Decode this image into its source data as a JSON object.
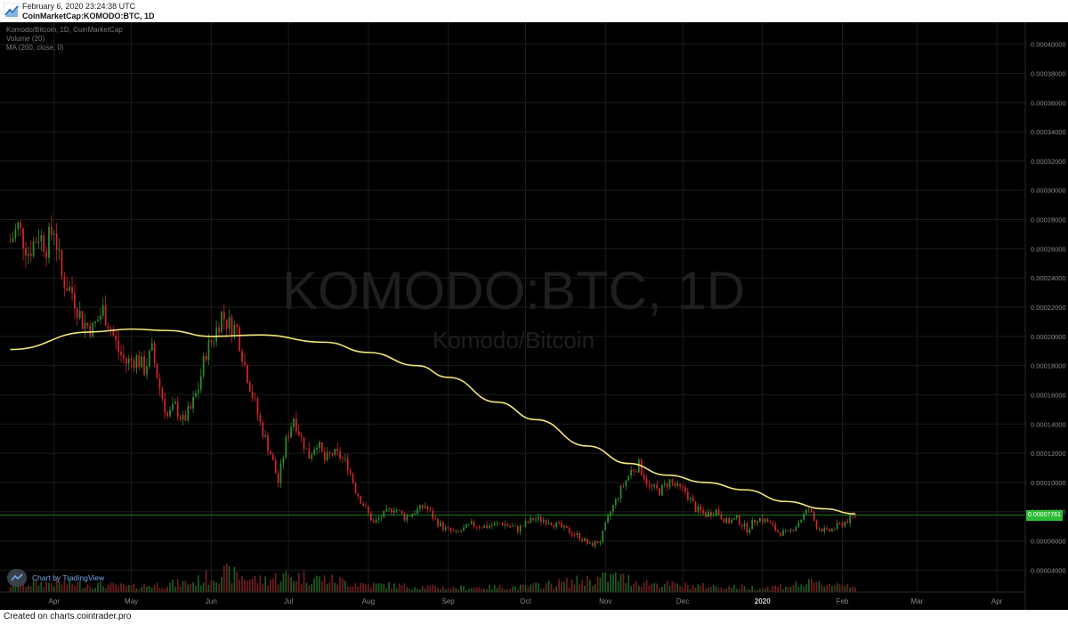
{
  "header": {
    "datetime": "February 6, 2020 23:24:38 UTC",
    "symbol": "CoinMarketCap:KOMODO:BTC, 1D"
  },
  "legend": {
    "series_title": "Komodo/Bitcoin, 1D, CoinMarketCap",
    "volume": "Volume (20)",
    "ma": "MA (200, close, 0)"
  },
  "watermark": {
    "main": "KOMODO:BTC, 1D",
    "sub": "Komodo/Bitcoin"
  },
  "badge": {
    "text": "Chart by TradingView"
  },
  "footer": {
    "text": "Created on charts.cointrader.pro"
  },
  "colors": {
    "background": "#000000",
    "up": "#2e8b2e",
    "down": "#d0262b",
    "ma": "#f1e57a",
    "grid": "#1c1c1c",
    "price_line": "#2dbd35"
  },
  "chart_data": {
    "type": "candlestick",
    "x_labels": [
      "Apr",
      "May",
      "Jun",
      "Jul",
      "Aug",
      "Sep",
      "Oct",
      "Nov",
      "Dec",
      "2020",
      "Feb",
      "Mar",
      "Apr"
    ],
    "y_ticks": [
      4e-05,
      6e-05,
      8e-05,
      0.0001,
      0.00012,
      0.00014,
      0.00016,
      0.00018,
      0.0002,
      0.00022,
      0.00024,
      0.00026,
      0.00028,
      0.0003,
      0.00032,
      0.00034,
      0.00036,
      0.00038,
      0.0004
    ],
    "y_tick_labels": [
      "0.00004000",
      "0.00006000",
      "0.00008000",
      "0.00010000",
      "0.00012000",
      "0.00014000",
      "0.00016000",
      "0.00018000",
      "0.00020000",
      "0.00022000",
      "0.00024000",
      "0.00026000",
      "0.00028000",
      "0.00030000",
      "0.00032000",
      "0.00034000",
      "0.00036000",
      "0.00038000",
      "0.00040000"
    ],
    "ylim": [
      2.5e-05,
      0.000415
    ],
    "last_price": 7.76e-05,
    "last_price_label": "0.00007761",
    "close_path": [
      [
        "2019-03-15",
        0.000265
      ],
      [
        "2019-03-18",
        0.000275
      ],
      [
        "2019-03-22",
        0.000258
      ],
      [
        "2019-03-26",
        0.00027
      ],
      [
        "2019-03-29",
        0.000262
      ],
      [
        "2019-04-01",
        0.000275
      ],
      [
        "2019-04-04",
        0.00024
      ],
      [
        "2019-04-08",
        0.00023
      ],
      [
        "2019-04-12",
        0.00021
      ],
      [
        "2019-04-16",
        0.000205
      ],
      [
        "2019-04-20",
        0.000218
      ],
      [
        "2019-04-23",
        0.000205
      ],
      [
        "2019-04-26",
        0.00019
      ],
      [
        "2019-04-29",
        0.000182
      ],
      [
        "2019-05-03",
        0.000185
      ],
      [
        "2019-05-06",
        0.000178
      ],
      [
        "2019-05-09",
        0.00019
      ],
      [
        "2019-05-12",
        0.000165
      ],
      [
        "2019-05-15",
        0.000145
      ],
      [
        "2019-05-18",
        0.000152
      ],
      [
        "2019-05-21",
        0.000142
      ],
      [
        "2019-05-24",
        0.00015
      ],
      [
        "2019-05-27",
        0.000165
      ],
      [
        "2019-05-30",
        0.00019
      ],
      [
        "2019-06-02",
        0.0002
      ],
      [
        "2019-06-05",
        0.000215
      ],
      [
        "2019-06-08",
        0.000208
      ],
      [
        "2019-06-11",
        0.000205
      ],
      [
        "2019-06-14",
        0.00018
      ],
      [
        "2019-06-17",
        0.00016
      ],
      [
        "2019-06-20",
        0.00014
      ],
      [
        "2019-06-24",
        0.00012
      ],
      [
        "2019-06-27",
        0.0001
      ],
      [
        "2019-06-30",
        0.000128
      ],
      [
        "2019-07-03",
        0.000145
      ],
      [
        "2019-07-06",
        0.00013
      ],
      [
        "2019-07-09",
        0.000118
      ],
      [
        "2019-07-12",
        0.000128
      ],
      [
        "2019-07-15",
        0.000115
      ],
      [
        "2019-07-18",
        0.00012
      ],
      [
        "2019-07-21",
        0.000118
      ],
      [
        "2019-07-24",
        0.000112
      ],
      [
        "2019-07-27",
        9.5e-05
      ],
      [
        "2019-07-30",
        8.5e-05
      ],
      [
        "2019-08-03",
        7.2e-05
      ],
      [
        "2019-08-07",
        7.8e-05
      ],
      [
        "2019-08-11",
        8.3e-05
      ],
      [
        "2019-08-15",
        7.6e-05
      ],
      [
        "2019-08-19",
        8e-05
      ],
      [
        "2019-08-23",
        8.4e-05
      ],
      [
        "2019-08-27",
        7.4e-05
      ],
      [
        "2019-08-31",
        6.8e-05
      ],
      [
        "2019-09-04",
        6.5e-05
      ],
      [
        "2019-09-10",
        7.1e-05
      ],
      [
        "2019-09-16",
        7e-05
      ],
      [
        "2019-09-22",
        7.2e-05
      ],
      [
        "2019-09-28",
        6.8e-05
      ],
      [
        "2019-10-04",
        7.5e-05
      ],
      [
        "2019-10-10",
        7.4e-05
      ],
      [
        "2019-10-16",
        6.8e-05
      ],
      [
        "2019-10-22",
        6.3e-05
      ],
      [
        "2019-10-26",
        5.7e-05
      ],
      [
        "2019-10-30",
        6e-05
      ],
      [
        "2019-11-03",
        8e-05
      ],
      [
        "2019-11-07",
        9.5e-05
      ],
      [
        "2019-11-11",
        0.000108
      ],
      [
        "2019-11-14",
        0.000112
      ],
      [
        "2019-11-18",
        9.7e-05
      ],
      [
        "2019-11-22",
        9.4e-05
      ],
      [
        "2019-11-26",
        0.000101
      ],
      [
        "2019-11-29",
        9.6e-05
      ],
      [
        "2019-12-02",
        9.4e-05
      ],
      [
        "2019-12-06",
        8.2e-05
      ],
      [
        "2019-12-10",
        7.8e-05
      ],
      [
        "2019-12-14",
        8.1e-05
      ],
      [
        "2019-12-18",
        7.3e-05
      ],
      [
        "2019-12-22",
        7.5e-05
      ],
      [
        "2019-12-26",
        6.8e-05
      ],
      [
        "2019-12-30",
        7.6e-05
      ],
      [
        "2020-01-03",
        7.3e-05
      ],
      [
        "2020-01-07",
        6.6e-05
      ],
      [
        "2020-01-11",
        6.5e-05
      ],
      [
        "2020-01-15",
        7.3e-05
      ],
      [
        "2020-01-19",
        8.2e-05
      ],
      [
        "2020-01-22",
        7e-05
      ],
      [
        "2020-01-26",
        6.6e-05
      ],
      [
        "2020-01-30",
        7e-05
      ],
      [
        "2020-02-03",
        7.4e-05
      ],
      [
        "2020-02-06",
        7.76e-05
      ]
    ],
    "ma200_path": [
      [
        "2019-03-15",
        0.000191
      ],
      [
        "2019-04-15",
        0.000203
      ],
      [
        "2019-05-01",
        0.000205
      ],
      [
        "2019-05-15",
        0.000204
      ],
      [
        "2019-06-01",
        0.0002
      ],
      [
        "2019-06-20",
        0.000201
      ],
      [
        "2019-07-15",
        0.000196
      ],
      [
        "2019-08-01",
        0.000189
      ],
      [
        "2019-08-20",
        0.00018
      ],
      [
        "2019-09-01",
        0.000172
      ],
      [
        "2019-09-20",
        0.000155
      ],
      [
        "2019-10-05",
        0.000143
      ],
      [
        "2019-10-25",
        0.000125
      ],
      [
        "2019-11-10",
        0.000113
      ],
      [
        "2019-11-25",
        0.000105
      ],
      [
        "2019-12-10",
        0.0001
      ],
      [
        "2019-12-25",
        9.5e-05
      ],
      [
        "2020-01-10",
        8.7e-05
      ],
      [
        "2020-01-25",
        8.2e-05
      ],
      [
        "2020-02-06",
        7.85e-05
      ]
    ],
    "volume_profile": [
      [
        "2019-03-15",
        0.35
      ],
      [
        "2019-04-01",
        0.45
      ],
      [
        "2019-05-01",
        0.25
      ],
      [
        "2019-05-25",
        0.45
      ],
      [
        "2019-06-05",
        0.9
      ],
      [
        "2019-06-20",
        0.55
      ],
      [
        "2019-07-01",
        0.75
      ],
      [
        "2019-07-15",
        0.6
      ],
      [
        "2019-08-01",
        0.35
      ],
      [
        "2019-09-01",
        0.2
      ],
      [
        "2019-10-01",
        0.25
      ],
      [
        "2019-11-05",
        0.7
      ],
      [
        "2019-11-15",
        0.45
      ],
      [
        "2019-12-01",
        0.3
      ],
      [
        "2020-01-01",
        0.2
      ],
      [
        "2020-01-20",
        0.4
      ],
      [
        "2020-02-06",
        0.35
      ]
    ]
  }
}
